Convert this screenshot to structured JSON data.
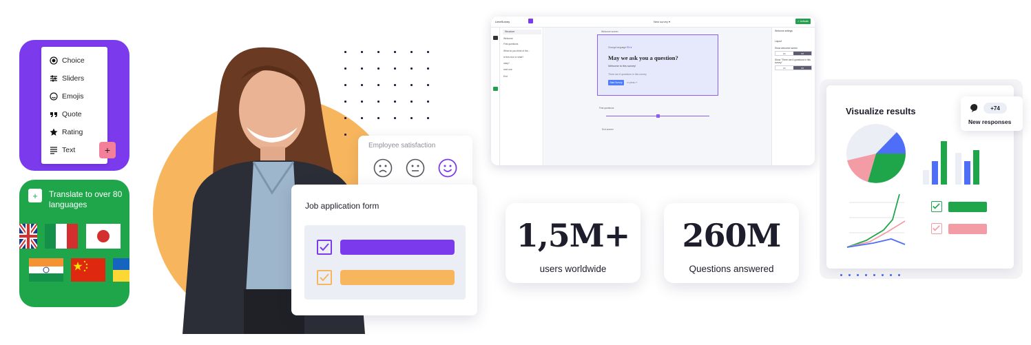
{
  "question_types": {
    "items": [
      {
        "label": "Choice",
        "icon": "radio-icon"
      },
      {
        "label": "Sliders",
        "icon": "sliders-icon"
      },
      {
        "label": "Emojis",
        "icon": "emoji-icon"
      },
      {
        "label": "Quote",
        "icon": "quote-icon"
      },
      {
        "label": "Rating",
        "icon": "star-icon"
      },
      {
        "label": "Text",
        "icon": "text-lines-icon"
      }
    ],
    "add_label": "+"
  },
  "translate": {
    "add_label": "+",
    "text": "Translate to over 80 languages"
  },
  "employee_satisfaction": {
    "title": "Employee satisfaction"
  },
  "job_form": {
    "title": "Job application form"
  },
  "editor": {
    "app_name": "LimeSurvey",
    "survey_title": "New survey ▾",
    "publish_label": "✓ Activate",
    "structure_label": "Structure",
    "structure_items": [
      "Welcome",
      "First questions",
      "What do you think of the...",
      "Is this nice or what?",
      "okay?",
      "next one",
      "End"
    ],
    "section_welcome": "Welcome screen",
    "language_label": "Change language",
    "language_value": "EN ▾",
    "question": "May we ask you a question?",
    "welcome_text": "Welcome to this survey!",
    "info_text": "There are 6 questions in this survey.",
    "start_button": "Start Survey",
    "press_text": "or press ↵",
    "group_label": "First questions",
    "end_label": "End screen",
    "settings_title": "Welcome settings",
    "layout_label": "Layout",
    "show_welcome": "Show welcome screen",
    "show_count": "Show \"There are 6 questions in this survey\"",
    "on": "On",
    "off": "Off"
  },
  "stats": [
    {
      "value": "1,5M+",
      "label": "users worldwide"
    },
    {
      "value": "260M",
      "label": "Questions answered"
    }
  ],
  "visualize": {
    "title": "Visualize results",
    "new_count": "+74",
    "new_label": "New responses"
  },
  "colors": {
    "purple": "#7c3aed",
    "green": "#1fa64a",
    "orange": "#f7b65d",
    "pink": "#f49ca6",
    "blue": "#4f6ef7"
  }
}
